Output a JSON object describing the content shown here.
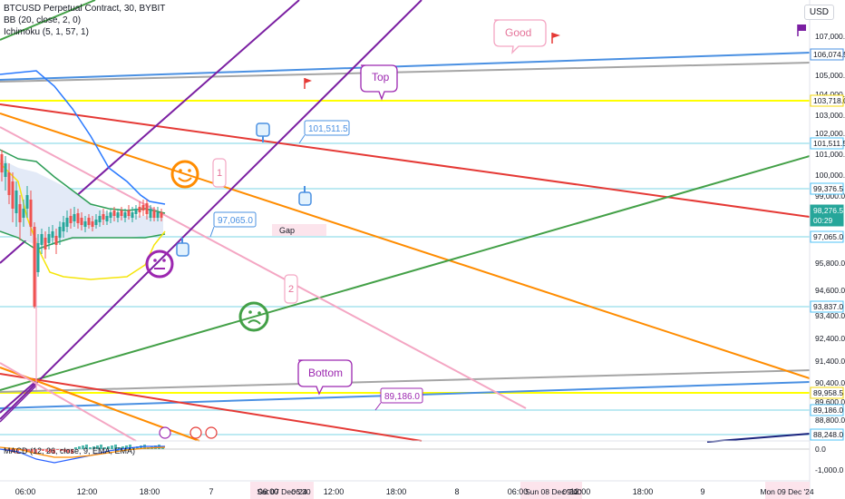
{
  "header": {
    "symbol_line": "BTCUSD Perpetual Contract, 30, BYBIT",
    "bb_line": "BB (20, close, 2, 0)",
    "ichimoku_line": "Ichimoku (5, 1, 57, 1)",
    "currency": "USD",
    "macd_line": "MACD (12, 26, close, 9, EMA, EMA)"
  },
  "colors": {
    "candle_up": "#26a69a",
    "candle_down": "#ef5350",
    "bb_band": "#2f9e58",
    "bb_fill": "#e3eaf7",
    "ichimoku_blue": "#2979ff",
    "ichimoku_yellow": "#f5e50a",
    "purple": "#7b1fa2",
    "orange": "#ff8c00",
    "green": "#43a047",
    "red": "#e53935",
    "blue": "#4a90e2",
    "gray": "#9e9e9e",
    "pink": "#f4a6c3",
    "cyan_level": "#a7e3ee",
    "yellow_level": "#ffff00",
    "navy": "#1a237e"
  },
  "chart_data": {
    "type": "line",
    "title": "BTCUSD Perpetual Contract, 30, BYBIT",
    "y_ticks": [
      "107,000.0",
      "105,000.0",
      "104,000.0",
      "103,000.0",
      "102,000.0",
      "101,000.0",
      "100,000.0",
      "99,000.0",
      "95,800.0",
      "94,600.0",
      "93,400.0",
      "92,400.0",
      "91,400.0",
      "90,400.0",
      "89,600.0",
      "88,800.0"
    ],
    "macd_ticks": [
      "0.0",
      "-1,000.0"
    ],
    "x_ticks": [
      "06:00",
      "12:00",
      "18:00",
      "7",
      "06:00",
      "12:00",
      "18:00",
      "8",
      "06:00",
      "12:00",
      "18:00",
      "9"
    ],
    "x_labels_highlight": [
      "Sat 07 Dec '24",
      "06:30",
      "Sun 08 Dec '24",
      "09:00",
      "Mon 09 Dec '24"
    ],
    "price_labels": [
      {
        "value": "106,074.5",
        "color": "#4a90e2"
      },
      {
        "value": "103,718.0",
        "color": "#f5d90a"
      },
      {
        "value": "101,511.5",
        "color": "#4fc3f7"
      },
      {
        "value": "99,376.5",
        "color": "#4fc3f7"
      },
      {
        "value": "98,276.5",
        "color": "#26a69a"
      },
      {
        "value": "00:29",
        "color": "#26a69a"
      },
      {
        "value": "97,065.0",
        "color": "#4fc3f7"
      },
      {
        "value": "93,837.0",
        "color": "#4fc3f7"
      },
      {
        "value": "89,958.5",
        "color": "#f5d90a"
      },
      {
        "value": "89,186.0",
        "color": "#4fc3f7"
      },
      {
        "value": "88,248.0",
        "color": "#4fc3f7"
      }
    ],
    "annotations": [
      {
        "text": "Good",
        "kind": "bubble",
        "color": "#f4a6c3"
      },
      {
        "text": "Top",
        "kind": "bubble",
        "color": "#9c27b0"
      },
      {
        "text": "Bottom",
        "kind": "bubble",
        "color": "#9c27b0"
      },
      {
        "text": "101,511.5",
        "kind": "price-note",
        "color": "#4a90e2"
      },
      {
        "text": "97,065.0",
        "kind": "price-note",
        "color": "#4a90e2"
      },
      {
        "text": "89,186.0",
        "kind": "price-note",
        "color": "#9c27b0"
      },
      {
        "text": "Gap",
        "kind": "label",
        "color": "#f8d7dc"
      },
      {
        "text": "1",
        "kind": "wave",
        "color": "#f4a6c3"
      },
      {
        "text": "2",
        "kind": "wave",
        "color": "#f4a6c3"
      }
    ],
    "horizontal_levels": [
      106074.5,
      103718.0,
      101511.5,
      99376.5,
      97065.0,
      93837.0,
      89958.5,
      89186.0,
      88248.0
    ],
    "last_price": 98276.5
  }
}
